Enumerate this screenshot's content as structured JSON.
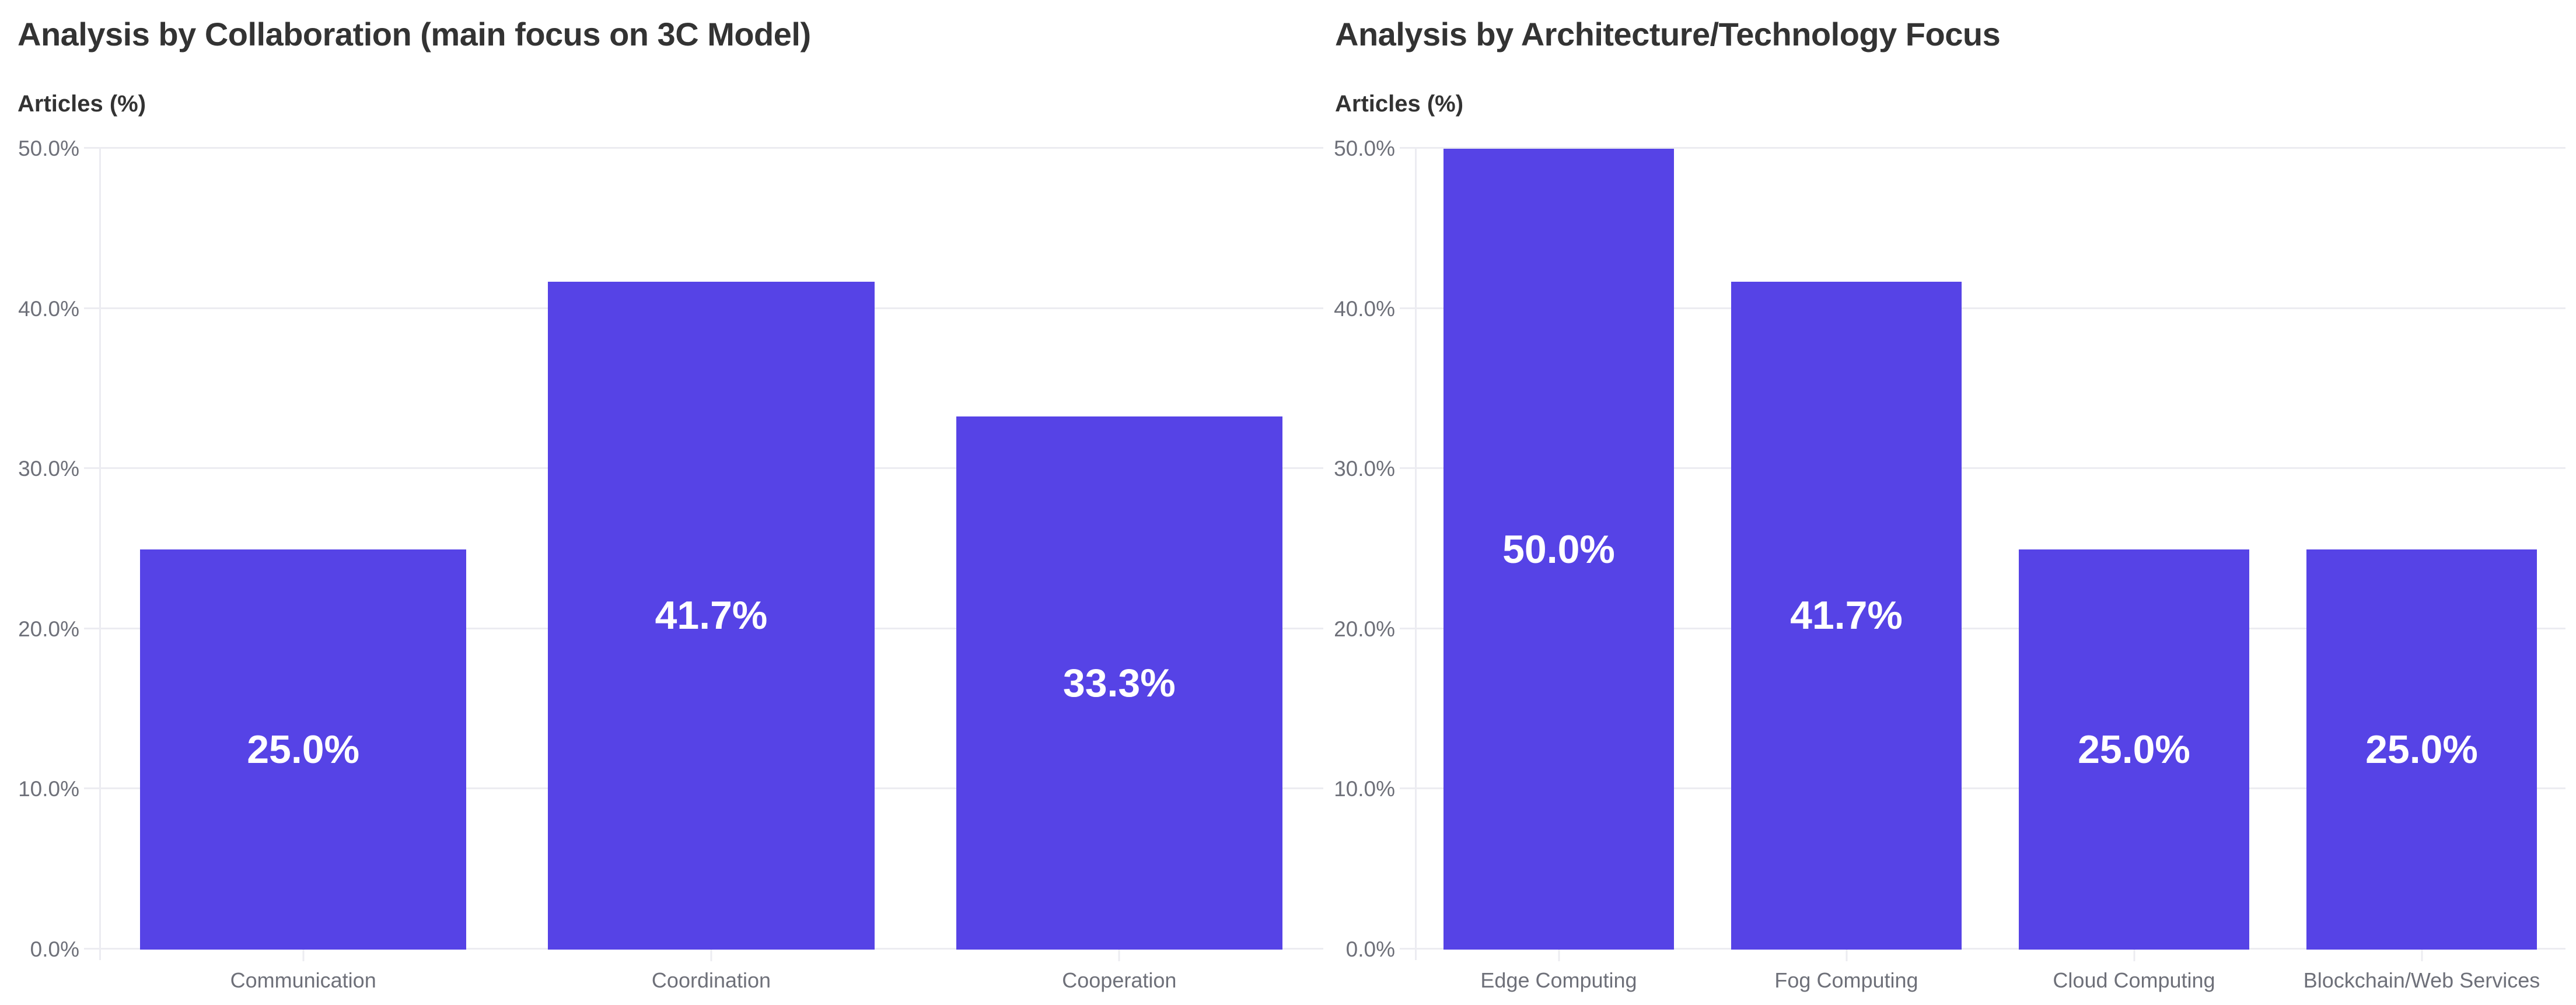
{
  "colors": {
    "bar": "#5643e6",
    "bar_label": "#ffffff",
    "title_text": "#333333",
    "axis_text": "#6e7079",
    "grid_line": "#ececf1",
    "background": "#ffffff"
  },
  "chart_data": [
    {
      "type": "bar",
      "title": "Analysis by Collaboration (main focus on 3C Model)",
      "ylabel": "Articles (%)",
      "xlabel": "",
      "categories": [
        "Communication",
        "Coordination",
        "Cooperation"
      ],
      "values": [
        25.0,
        41.7,
        33.3
      ],
      "value_labels": [
        "25.0%",
        "41.7%",
        "33.3%"
      ],
      "ylim": [
        0,
        50
      ],
      "yticks": [
        {
          "value": 0,
          "label": "0.0%"
        },
        {
          "value": 10,
          "label": "10.0%"
        },
        {
          "value": 20,
          "label": "20.0%"
        },
        {
          "value": 30,
          "label": "30.0%"
        },
        {
          "value": 40,
          "label": "40.0%"
        },
        {
          "value": 50,
          "label": "50.0%"
        }
      ],
      "grid": true,
      "legend": "none",
      "bar_color": "#5643e6"
    },
    {
      "type": "bar",
      "title": "Analysis by Architecture/Technology Focus",
      "ylabel": "Articles (%)",
      "xlabel": "",
      "categories": [
        "Edge Computing",
        "Fog Computing",
        "Cloud Computing",
        "Blockchain/Web Services"
      ],
      "values": [
        50.0,
        41.7,
        25.0,
        25.0
      ],
      "value_labels": [
        "50.0%",
        "41.7%",
        "25.0%",
        "25.0%"
      ],
      "ylim": [
        0,
        50
      ],
      "yticks": [
        {
          "value": 0,
          "label": "0.0%"
        },
        {
          "value": 10,
          "label": "10.0%"
        },
        {
          "value": 20,
          "label": "20.0%"
        },
        {
          "value": 30,
          "label": "30.0%"
        },
        {
          "value": 40,
          "label": "40.0%"
        },
        {
          "value": 50,
          "label": "50.0%"
        }
      ],
      "grid": true,
      "legend": "none",
      "bar_color": "#5643e6"
    }
  ]
}
